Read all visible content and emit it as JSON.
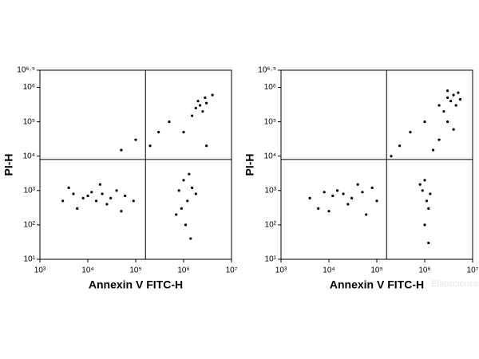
{
  "chart_data": [
    {
      "type": "scatter",
      "x_label": "Annexin V FITC-H",
      "y_label": "PI-H",
      "log_x": true,
      "log_y": true,
      "color": "#000000",
      "xlim": [
        1000,
        10000000
      ],
      "ylim": [
        10,
        3162278
      ],
      "xticks": [
        {
          "value": 1000,
          "label": "10³"
        },
        {
          "value": 10000,
          "label": "10⁴"
        },
        {
          "value": 100000,
          "label": "10⁵"
        },
        {
          "value": 1000000,
          "label": "10⁶"
        },
        {
          "value": 10000000,
          "label": "10⁷"
        }
      ],
      "yticks": [
        {
          "value": 10,
          "label": "10¹"
        },
        {
          "value": 100,
          "label": "10²"
        },
        {
          "value": 1000,
          "label": "10³"
        },
        {
          "value": 10000,
          "label": "10⁴"
        },
        {
          "value": 100000,
          "label": "10⁵"
        },
        {
          "value": 1000000,
          "label": "10⁶"
        },
        {
          "value": 3162278,
          "label": "10⁶·⁵"
        }
      ],
      "gate_x": 160000,
      "gate_y": 8000,
      "x": [
        3000,
        5000,
        8000,
        10000,
        12000,
        15000,
        20000,
        30000,
        40000,
        60000,
        6000,
        25000,
        90000,
        4000,
        18000,
        50000,
        800000,
        1000000,
        1200000,
        1500000,
        900000,
        1300000,
        700000,
        1800000,
        1100000,
        1400000,
        1800000,
        2200000,
        2500000,
        2000000,
        3000000,
        1500000,
        2800000,
        300000,
        500000,
        200000,
        100000,
        1000000,
        50000,
        3000000,
        4000000
      ],
      "y": [
        500,
        800,
        600,
        700,
        900,
        500,
        800,
        600,
        1000,
        700,
        300,
        400,
        500,
        1200,
        1500,
        250,
        1000,
        2000,
        500,
        1200,
        300,
        3000,
        200,
        800,
        100,
        40,
        250000,
        300000,
        200000,
        400000,
        350000,
        150000,
        500000,
        50000,
        100000,
        20000,
        30000,
        50000,
        15000,
        20000,
        600000
      ]
    },
    {
      "type": "scatter",
      "x_label": "Annexin V FITC-H",
      "y_label": "PI-H",
      "log_x": true,
      "log_y": true,
      "color": "#000000",
      "xlim": [
        1000,
        10000000
      ],
      "ylim": [
        10,
        3162278
      ],
      "xticks": [
        {
          "value": 1000,
          "label": "10³"
        },
        {
          "value": 10000,
          "label": "10⁴"
        },
        {
          "value": 100000,
          "label": "10⁵"
        },
        {
          "value": 1000000,
          "label": "10⁶"
        },
        {
          "value": 10000000,
          "label": "10⁷"
        }
      ],
      "yticks": [
        {
          "value": 10,
          "label": "10¹"
        },
        {
          "value": 100,
          "label": "10²"
        },
        {
          "value": 1000,
          "label": "10³"
        },
        {
          "value": 10000,
          "label": "10⁴"
        },
        {
          "value": 100000,
          "label": "10⁵"
        },
        {
          "value": 1000000,
          "label": "10⁶"
        },
        {
          "value": 3162278,
          "label": "10⁶·⁵"
        }
      ],
      "gate_x": 160000,
      "gate_y": 8000,
      "x": [
        4000,
        8000,
        12000,
        15000,
        20000,
        30000,
        50000,
        80000,
        6000,
        25000,
        100000,
        40000,
        60000,
        10000,
        900000,
        1000000,
        1100000,
        1200000,
        800000,
        1300000,
        1000000,
        1200000,
        3000000,
        4000000,
        5000000,
        3500000,
        2000000,
        4500000,
        2500000,
        3000000,
        5500000,
        1000000,
        500000,
        2000000,
        300000,
        3000000,
        200000,
        1500000,
        4000000
      ],
      "y": [
        600,
        900,
        700,
        1000,
        800,
        600,
        900,
        1200,
        300,
        400,
        500,
        1500,
        200,
        250,
        1000,
        2000,
        500,
        300,
        1500,
        800,
        100,
        30,
        500000,
        600000,
        700000,
        400000,
        300000,
        300000,
        200000,
        800000,
        450000,
        100000,
        50000,
        30000,
        20000,
        100000,
        10000,
        15000,
        60000
      ]
    }
  ],
  "watermark": "Elabscience"
}
